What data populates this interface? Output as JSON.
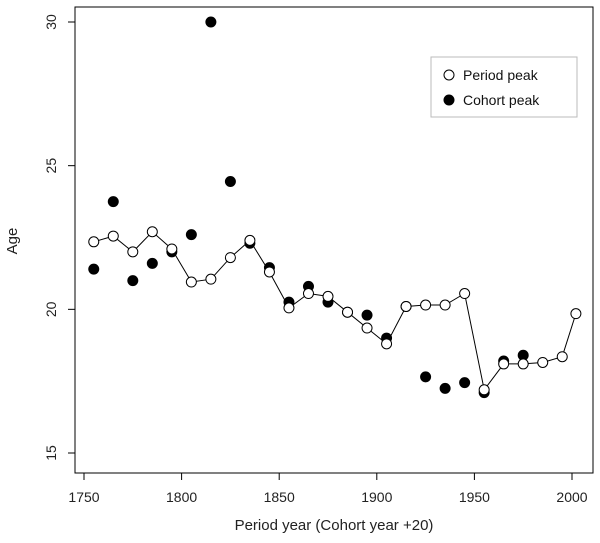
{
  "chart_data": {
    "type": "scatter",
    "title": "",
    "xlabel": "Period year (Cohort year +20)",
    "ylabel": "Age",
    "xlim": [
      1750,
      2005
    ],
    "ylim": [
      14.5,
      30.3
    ],
    "x_ticks": [
      1750,
      1800,
      1850,
      1900,
      1950,
      2000
    ],
    "y_ticks": [
      15,
      20,
      25,
      30
    ],
    "grid": false,
    "legend_position": "top-right",
    "series": [
      {
        "name": "Period peak",
        "marker": "open-circle",
        "connected": true,
        "color": "#000000",
        "x": [
          1755,
          1765,
          1775,
          1785,
          1795,
          1805,
          1815,
          1825,
          1835,
          1845,
          1855,
          1865,
          1875,
          1885,
          1895,
          1905,
          1915,
          1925,
          1935,
          1945,
          1955,
          1965,
          1975,
          1985,
          1995,
          2002
        ],
        "y": [
          22.35,
          22.55,
          22.0,
          22.7,
          22.1,
          20.95,
          21.05,
          21.8,
          22.4,
          21.3,
          20.05,
          20.55,
          20.45,
          19.9,
          19.35,
          18.8,
          20.1,
          20.15,
          20.15,
          20.55,
          17.2,
          18.1,
          18.1,
          18.15,
          18.35,
          19.85
        ]
      },
      {
        "name": "Cohort peak",
        "marker": "filled-circle",
        "connected": false,
        "color": "#000000",
        "x": [
          1755,
          1765,
          1775,
          1785,
          1795,
          1805,
          1815,
          1825,
          1835,
          1845,
          1855,
          1865,
          1875,
          1885,
          1895,
          1905,
          1915,
          1925,
          1935,
          1945,
          1955,
          1965,
          1975
        ],
        "y": [
          21.4,
          23.75,
          21.0,
          21.6,
          22.0,
          22.6,
          30.0,
          24.45,
          22.3,
          21.45,
          20.25,
          20.8,
          20.25,
          19.9,
          19.8,
          19.0,
          20.1,
          17.65,
          17.25,
          17.45,
          17.1,
          18.2,
          18.4
        ]
      }
    ]
  }
}
